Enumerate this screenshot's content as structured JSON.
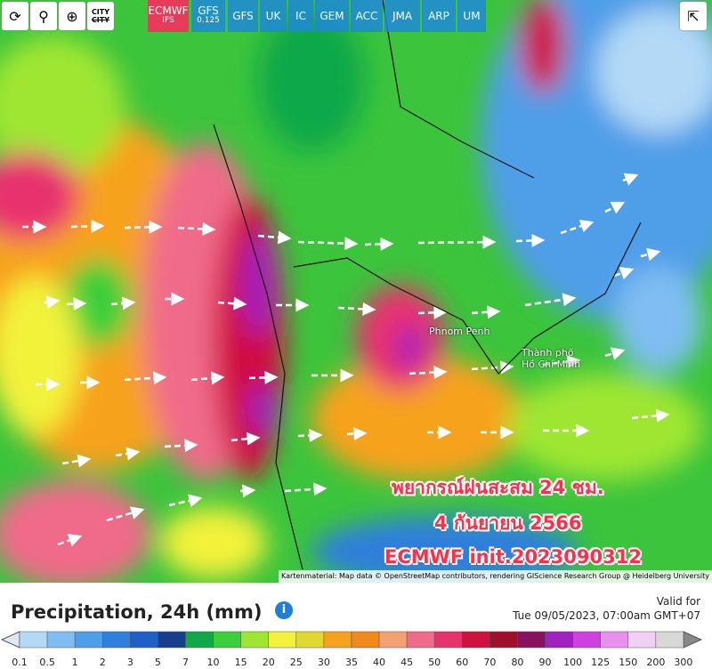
{
  "toolbar": {
    "city": "CITY",
    "models": [
      {
        "label": "ECMWF",
        "sub": "IFS"
      },
      {
        "label": "GFS",
        "sub": "0.125"
      },
      {
        "label": "GFS"
      },
      {
        "label": "UK"
      },
      {
        "label": "IC"
      },
      {
        "label": "GEM"
      },
      {
        "label": "ACC"
      },
      {
        "label": "JMA"
      },
      {
        "label": "ARP"
      },
      {
        "label": "UM"
      }
    ]
  },
  "map": {
    "places": [
      "Phnom Penh",
      "Thành phố",
      "Hồ Chí Minh"
    ],
    "overlay": [
      "พยากรณ์ฝนสะสม 24 ชม.",
      "4 กันยายน 2566",
      "ECMWF init.2023090312"
    ],
    "attribution": "Kartenmaterial: Map data © OpenStreetMap contributors, rendering GIScience Research Group @ Heidelberg University"
  },
  "legend": {
    "title": "Precipitation, 24h (mm)",
    "valid_label": "Valid for",
    "valid_time": "Tue 09/05/2023, 07:00am GMT+07",
    "labels": [
      "0.1",
      "0.5",
      "1",
      "2",
      "3",
      "5",
      "7",
      "10",
      "15",
      "20",
      "25",
      "30",
      "35",
      "40",
      "45",
      "50",
      "60",
      "70",
      "80",
      "90",
      "100",
      "125",
      "150",
      "200",
      "300"
    ],
    "colors": [
      "#b3d9f7",
      "#7fbdf2",
      "#4f9ee8",
      "#2f7fdc",
      "#1f5fc8",
      "#163e8c",
      "#11a84a",
      "#3bcf3b",
      "#9ee632",
      "#f2f23a",
      "#e0d830",
      "#f7a21f",
      "#f08a1a",
      "#f5a070",
      "#f06a8a",
      "#e8326e",
      "#d0103f",
      "#a0102a",
      "#8a1060",
      "#a020c0",
      "#d040e0",
      "#e890f0",
      "#f0d0f5",
      "#d8d8d8"
    ]
  }
}
